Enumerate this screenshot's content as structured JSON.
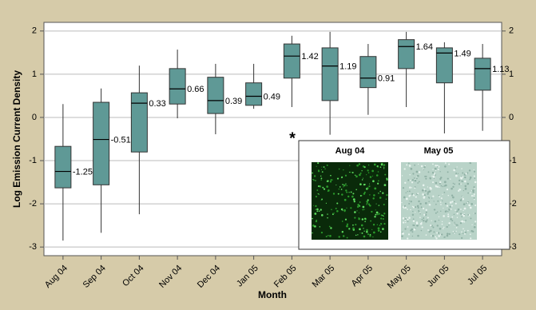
{
  "chart_data": {
    "type": "box",
    "xlabel": "Month",
    "ylabel": "Log Emission Current Density",
    "categories": [
      "Aug 04",
      "Sep 04",
      "Oct 04",
      "Nov 04",
      "Dec 04",
      "Jan 05",
      "Feb 05",
      "Mar 05",
      "Apr 05",
      "May 05",
      "Jun 05",
      "Jul 05"
    ],
    "boxes": [
      {
        "whislo": -2.85,
        "q1": -1.63,
        "med": -1.25,
        "q3": -0.67,
        "whishi": 0.31
      },
      {
        "whislo": -2.67,
        "q1": -1.56,
        "med": -0.51,
        "q3": 0.35,
        "whishi": 0.67
      },
      {
        "whislo": -2.24,
        "q1": -0.8,
        "med": 0.33,
        "q3": 0.57,
        "whishi": 1.2
      },
      {
        "whislo": -0.02,
        "q1": 0.31,
        "med": 0.66,
        "q3": 1.13,
        "whishi": 1.57
      },
      {
        "whislo": -0.39,
        "q1": 0.09,
        "med": 0.39,
        "q3": 0.93,
        "whishi": 1.24
      },
      {
        "whislo": 0.2,
        "q1": 0.28,
        "med": 0.49,
        "q3": 0.8,
        "whishi": 1.24
      },
      {
        "whislo": 0.24,
        "q1": 0.91,
        "med": 1.42,
        "q3": 1.7,
        "whishi": 1.89
      },
      {
        "whislo": -0.4,
        "q1": 0.39,
        "med": 1.19,
        "q3": 1.61,
        "whishi": 1.98
      },
      {
        "whislo": 0.06,
        "q1": 0.69,
        "med": 0.91,
        "q3": 1.41,
        "whishi": 1.7
      },
      {
        "whislo": 0.24,
        "q1": 1.13,
        "med": 1.64,
        "q3": 1.8,
        "whishi": 1.98
      },
      {
        "whislo": -0.37,
        "q1": 0.8,
        "med": 1.49,
        "q3": 1.61,
        "whishi": 1.74
      },
      {
        "whislo": -0.31,
        "q1": 0.63,
        "med": 1.13,
        "q3": 1.37,
        "whishi": 1.7
      }
    ],
    "color": "#5f9996",
    "ylim": [
      -3.2,
      2.2
    ],
    "yticks": [
      -3,
      -2,
      -1,
      0,
      1,
      2
    ],
    "grid": true,
    "inset": {
      "marker": "*",
      "labels": [
        "Aug 04",
        "May 05"
      ]
    }
  }
}
